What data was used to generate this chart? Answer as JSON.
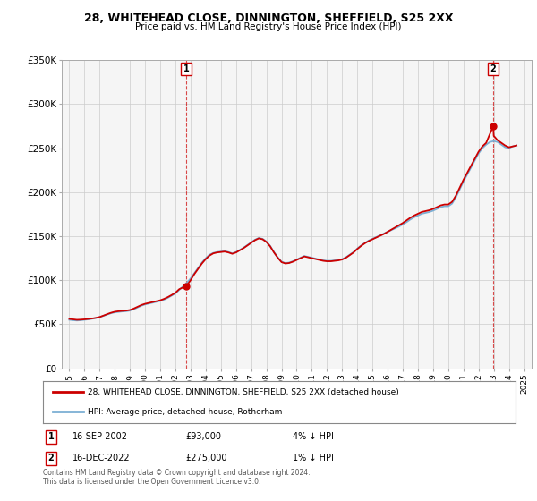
{
  "title": "28, WHITEHEAD CLOSE, DINNINGTON, SHEFFIELD, S25 2XX",
  "subtitle": "Price paid vs. HM Land Registry's House Price Index (HPI)",
  "legend_line1": "28, WHITEHEAD CLOSE, DINNINGTON, SHEFFIELD, S25 2XX (detached house)",
  "legend_line2": "HPI: Average price, detached house, Rotherham",
  "sale1_label": "1",
  "sale1_date": "16-SEP-2002",
  "sale1_price": "£93,000",
  "sale1_hpi": "4% ↓ HPI",
  "sale1_year": 2002.71,
  "sale1_value": 93000,
  "sale2_label": "2",
  "sale2_date": "16-DEC-2022",
  "sale2_price": "£275,000",
  "sale2_hpi": "1% ↓ HPI",
  "sale2_year": 2022.96,
  "sale2_value": 275000,
  "ylim": [
    0,
    350000
  ],
  "yticks": [
    0,
    50000,
    100000,
    150000,
    200000,
    250000,
    300000,
    350000
  ],
  "ytick_labels": [
    "£0",
    "£50K",
    "£100K",
    "£150K",
    "£200K",
    "£250K",
    "£300K",
    "£350K"
  ],
  "xlim": [
    1994.5,
    2025.5
  ],
  "red_color": "#cc0000",
  "blue_color": "#7bafd4",
  "dashed_color": "#cc0000",
  "bg_color": "#f0f0f0",
  "plot_bg": "#f5f5f5",
  "footer_line1": "Contains HM Land Registry data © Crown copyright and database right 2024.",
  "footer_line2": "This data is licensed under the Open Government Licence v3.0.",
  "hpi_data": {
    "years": [
      1995.0,
      1995.25,
      1995.5,
      1995.75,
      1996.0,
      1996.25,
      1996.5,
      1996.75,
      1997.0,
      1997.25,
      1997.5,
      1997.75,
      1998.0,
      1998.25,
      1998.5,
      1998.75,
      1999.0,
      1999.25,
      1999.5,
      1999.75,
      2000.0,
      2000.25,
      2000.5,
      2000.75,
      2001.0,
      2001.25,
      2001.5,
      2001.75,
      2002.0,
      2002.25,
      2002.5,
      2002.75,
      2003.0,
      2003.25,
      2003.5,
      2003.75,
      2004.0,
      2004.25,
      2004.5,
      2004.75,
      2005.0,
      2005.25,
      2005.5,
      2005.75,
      2006.0,
      2006.25,
      2006.5,
      2006.75,
      2007.0,
      2007.25,
      2007.5,
      2007.75,
      2008.0,
      2008.25,
      2008.5,
      2008.75,
      2009.0,
      2009.25,
      2009.5,
      2009.75,
      2010.0,
      2010.25,
      2010.5,
      2010.75,
      2011.0,
      2011.25,
      2011.5,
      2011.75,
      2012.0,
      2012.25,
      2012.5,
      2012.75,
      2013.0,
      2013.25,
      2013.5,
      2013.75,
      2014.0,
      2014.25,
      2014.5,
      2014.75,
      2015.0,
      2015.25,
      2015.5,
      2015.75,
      2016.0,
      2016.25,
      2016.5,
      2016.75,
      2017.0,
      2017.25,
      2017.5,
      2017.75,
      2018.0,
      2018.25,
      2018.5,
      2018.75,
      2019.0,
      2019.25,
      2019.5,
      2019.75,
      2020.0,
      2020.25,
      2020.5,
      2020.75,
      2021.0,
      2021.25,
      2021.5,
      2021.75,
      2022.0,
      2022.25,
      2022.5,
      2022.75,
      2023.0,
      2023.25,
      2023.5,
      2023.75,
      2024.0,
      2024.25,
      2024.5
    ],
    "values": [
      55000,
      54500,
      54200,
      54500,
      55000,
      55500,
      56200,
      57000,
      58000,
      59500,
      61000,
      62500,
      63500,
      64000,
      64500,
      64800,
      65500,
      67000,
      69000,
      71000,
      72500,
      73500,
      74500,
      75500,
      76500,
      78000,
      80000,
      82500,
      85000,
      89000,
      93000,
      97000,
      102000,
      108000,
      114000,
      120000,
      125000,
      129000,
      131000,
      132000,
      132500,
      133000,
      132000,
      130500,
      132000,
      134500,
      137000,
      140000,
      143000,
      146000,
      148000,
      147000,
      144000,
      139000,
      132000,
      126000,
      121000,
      119500,
      120000,
      121500,
      123500,
      125500,
      127500,
      126500,
      125500,
      124500,
      123500,
      122500,
      122000,
      122000,
      122500,
      123000,
      124000,
      126000,
      129000,
      132000,
      136000,
      139500,
      142500,
      145000,
      147000,
      149000,
      151000,
      153000,
      155000,
      157000,
      159000,
      161000,
      163500,
      166000,
      169000,
      171500,
      173500,
      175500,
      176500,
      177500,
      179000,
      181000,
      183000,
      184000,
      184000,
      187000,
      194000,
      203000,
      212000,
      220000,
      228000,
      236000,
      244000,
      250000,
      254000,
      257000,
      258000,
      257000,
      254000,
      251000,
      250000,
      252000,
      253000
    ]
  },
  "price_paid_data": {
    "years": [
      1995.0,
      1995.25,
      1995.5,
      1995.75,
      1996.0,
      1996.25,
      1996.5,
      1996.75,
      1997.0,
      1997.25,
      1997.5,
      1997.75,
      1998.0,
      1998.25,
      1998.5,
      1998.75,
      1999.0,
      1999.25,
      1999.5,
      1999.75,
      2000.0,
      2000.25,
      2000.5,
      2000.75,
      2001.0,
      2001.25,
      2001.5,
      2001.75,
      2002.0,
      2002.25,
      2002.5,
      2002.71,
      2003.0,
      2003.25,
      2003.5,
      2003.75,
      2004.0,
      2004.25,
      2004.5,
      2004.75,
      2005.0,
      2005.25,
      2005.5,
      2005.75,
      2006.0,
      2006.25,
      2006.5,
      2006.75,
      2007.0,
      2007.25,
      2007.5,
      2007.75,
      2008.0,
      2008.25,
      2008.5,
      2008.75,
      2009.0,
      2009.25,
      2009.5,
      2009.75,
      2010.0,
      2010.25,
      2010.5,
      2010.75,
      2011.0,
      2011.25,
      2011.5,
      2011.75,
      2012.0,
      2012.25,
      2012.5,
      2012.75,
      2013.0,
      2013.25,
      2013.5,
      2013.75,
      2014.0,
      2014.25,
      2014.5,
      2014.75,
      2015.0,
      2015.25,
      2015.5,
      2015.75,
      2016.0,
      2016.25,
      2016.5,
      2016.75,
      2017.0,
      2017.25,
      2017.5,
      2017.75,
      2018.0,
      2018.25,
      2018.5,
      2018.75,
      2019.0,
      2019.25,
      2019.5,
      2019.75,
      2020.0,
      2020.25,
      2020.5,
      2020.75,
      2021.0,
      2021.25,
      2021.5,
      2021.75,
      2022.0,
      2022.25,
      2022.5,
      2022.96,
      2023.0,
      2023.25,
      2023.5,
      2023.75,
      2024.0,
      2024.25,
      2024.5
    ],
    "values": [
      56000,
      55500,
      55000,
      55200,
      55500,
      56000,
      56500,
      57200,
      58200,
      59800,
      61500,
      63000,
      64200,
      64800,
      65200,
      65500,
      66200,
      67800,
      69800,
      71800,
      73200,
      74200,
      75200,
      76200,
      77200,
      78800,
      80800,
      83200,
      85800,
      89800,
      91800,
      93000,
      100000,
      107000,
      113000,
      119000,
      124000,
      128000,
      130500,
      131500,
      132000,
      132500,
      131500,
      130000,
      131500,
      134000,
      136500,
      139500,
      142500,
      145500,
      147500,
      146500,
      143500,
      138500,
      131500,
      125500,
      120500,
      119000,
      119500,
      121000,
      123000,
      125000,
      127000,
      126000,
      125000,
      124000,
      123000,
      122000,
      121500,
      121500,
      122000,
      122500,
      123500,
      125500,
      128500,
      131500,
      135500,
      139000,
      142000,
      144500,
      146500,
      148500,
      150500,
      152500,
      155000,
      157500,
      160000,
      162500,
      165000,
      168000,
      171000,
      173500,
      175500,
      177500,
      178500,
      179500,
      181000,
      183000,
      185000,
      186000,
      186000,
      189000,
      196000,
      205000,
      214000,
      222000,
      230000,
      238000,
      246000,
      252000,
      256000,
      275000,
      264000,
      259000,
      256000,
      253000,
      251000,
      252000,
      253000
    ]
  }
}
